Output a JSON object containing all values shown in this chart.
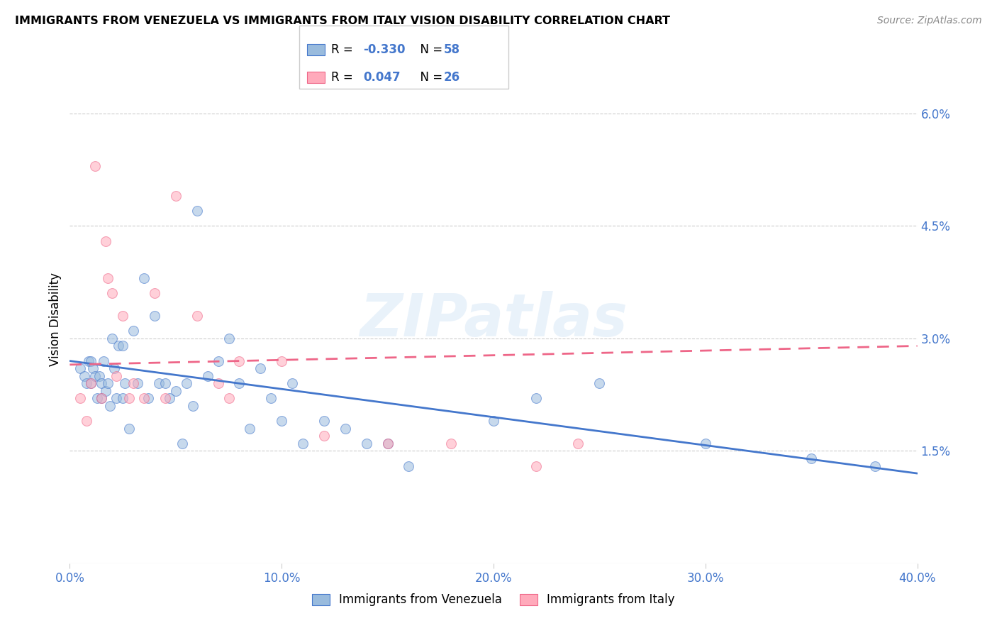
{
  "title": "IMMIGRANTS FROM VENEZUELA VS IMMIGRANTS FROM ITALY VISION DISABILITY CORRELATION CHART",
  "source": "Source: ZipAtlas.com",
  "ylabel": "Vision Disability",
  "xlim": [
    0.0,
    0.4
  ],
  "ylim": [
    0.0,
    0.065
  ],
  "xticks": [
    0.0,
    0.1,
    0.2,
    0.3,
    0.4
  ],
  "yticks": [
    0.015,
    0.03,
    0.045,
    0.06
  ],
  "ytick_labels": [
    "1.5%",
    "3.0%",
    "4.5%",
    "6.0%"
  ],
  "xtick_labels": [
    "0.0%",
    "10.0%",
    "20.0%",
    "30.0%",
    "40.0%"
  ],
  "blue_color": "#99bbdd",
  "pink_color": "#ffaabb",
  "blue_line_color": "#4477cc",
  "pink_line_color": "#ee6688",
  "tick_color": "#4477cc",
  "R_blue": -0.33,
  "N_blue": 58,
  "R_pink": 0.047,
  "N_pink": 26,
  "legend_label_blue": "Immigrants from Venezuela",
  "legend_label_pink": "Immigrants from Italy",
  "blue_x": [
    0.005,
    0.007,
    0.008,
    0.009,
    0.01,
    0.01,
    0.011,
    0.012,
    0.013,
    0.014,
    0.015,
    0.015,
    0.016,
    0.017,
    0.018,
    0.019,
    0.02,
    0.021,
    0.022,
    0.023,
    0.025,
    0.025,
    0.026,
    0.028,
    0.03,
    0.032,
    0.035,
    0.037,
    0.04,
    0.042,
    0.045,
    0.047,
    0.05,
    0.053,
    0.055,
    0.058,
    0.06,
    0.065,
    0.07,
    0.075,
    0.08,
    0.085,
    0.09,
    0.095,
    0.1,
    0.105,
    0.11,
    0.12,
    0.13,
    0.14,
    0.15,
    0.16,
    0.2,
    0.22,
    0.25,
    0.3,
    0.35,
    0.38
  ],
  "blue_y": [
    0.026,
    0.025,
    0.024,
    0.027,
    0.027,
    0.024,
    0.026,
    0.025,
    0.022,
    0.025,
    0.024,
    0.022,
    0.027,
    0.023,
    0.024,
    0.021,
    0.03,
    0.026,
    0.022,
    0.029,
    0.029,
    0.022,
    0.024,
    0.018,
    0.031,
    0.024,
    0.038,
    0.022,
    0.033,
    0.024,
    0.024,
    0.022,
    0.023,
    0.016,
    0.024,
    0.021,
    0.047,
    0.025,
    0.027,
    0.03,
    0.024,
    0.018,
    0.026,
    0.022,
    0.019,
    0.024,
    0.016,
    0.019,
    0.018,
    0.016,
    0.016,
    0.013,
    0.019,
    0.022,
    0.024,
    0.016,
    0.014,
    0.013
  ],
  "pink_x": [
    0.005,
    0.008,
    0.01,
    0.012,
    0.015,
    0.017,
    0.018,
    0.02,
    0.022,
    0.025,
    0.028,
    0.03,
    0.035,
    0.04,
    0.045,
    0.05,
    0.06,
    0.07,
    0.075,
    0.08,
    0.1,
    0.12,
    0.15,
    0.18,
    0.22,
    0.24
  ],
  "pink_y": [
    0.022,
    0.019,
    0.024,
    0.053,
    0.022,
    0.043,
    0.038,
    0.036,
    0.025,
    0.033,
    0.022,
    0.024,
    0.022,
    0.036,
    0.022,
    0.049,
    0.033,
    0.024,
    0.022,
    0.027,
    0.027,
    0.017,
    0.016,
    0.016,
    0.013,
    0.016
  ],
  "watermark": "ZIPatlas",
  "marker_size": 100,
  "marker_alpha": 0.55,
  "line_width": 2.0,
  "blue_line_start_y": 0.027,
  "blue_line_end_y": 0.012,
  "pink_line_start_y": 0.0265,
  "pink_line_end_y": 0.029
}
